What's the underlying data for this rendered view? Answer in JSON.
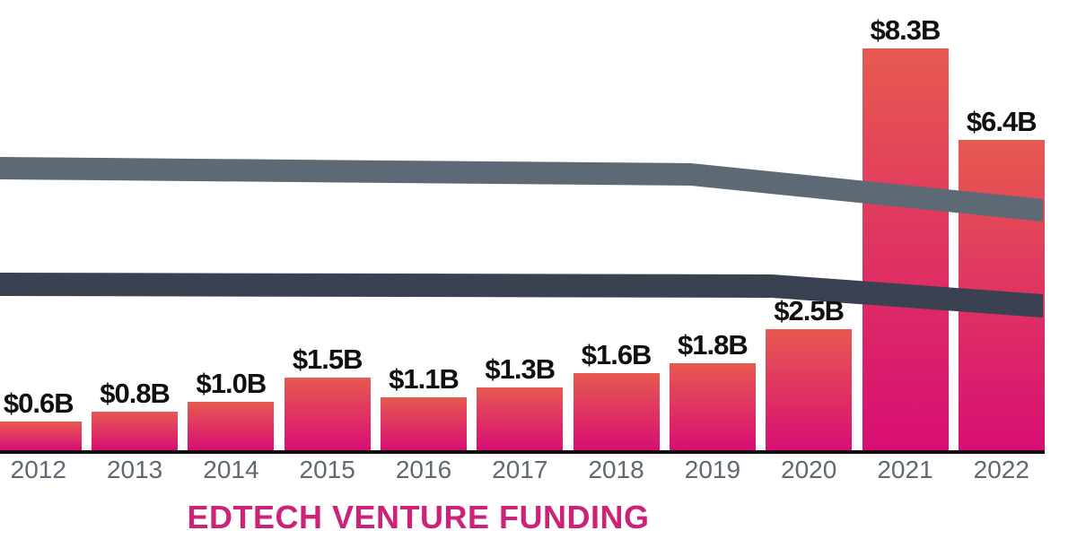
{
  "chart_data": {
    "type": "bar",
    "title": "EDTECH VENTURE FUNDING",
    "units": "USD billions",
    "categories": [
      "2012",
      "2013",
      "2014",
      "2015",
      "2016",
      "2017",
      "2018",
      "2019",
      "2020",
      "2021",
      "2022"
    ],
    "values": [
      0.6,
      0.8,
      1.0,
      1.5,
      1.1,
      1.3,
      1.6,
      1.8,
      2.5,
      8.3,
      6.4
    ],
    "data_labels": [
      "$0.6B",
      "$0.8B",
      "$1.0B",
      "$1.5B",
      "$1.1B",
      "$1.3B",
      "$1.6B",
      "$1.8B",
      "$2.5B",
      "$8.3B",
      "$6.4B"
    ],
    "xlabel": "",
    "ylabel": "",
    "ylim": [
      0,
      8.5
    ],
    "grid": false,
    "legend": null,
    "overlay_bands": [
      {
        "name": "upper-trend-band",
        "description": "thick slate ribbon crossing chart, sloping down toward right end"
      },
      {
        "name": "lower-trend-band",
        "description": "thick dark navy ribbon crossing chart, sloping down toward right end"
      }
    ]
  },
  "colors": {
    "bar_gradient_top": "#e65a50",
    "bar_gradient_bottom": "#d80e73",
    "upper_band": "#5d6974",
    "lower_band": "#3a4252",
    "axis": "#0f0f0f",
    "value_label": "#101010",
    "year_label": "#5f6873",
    "title": "#cc2277",
    "background": "#ffffff"
  }
}
